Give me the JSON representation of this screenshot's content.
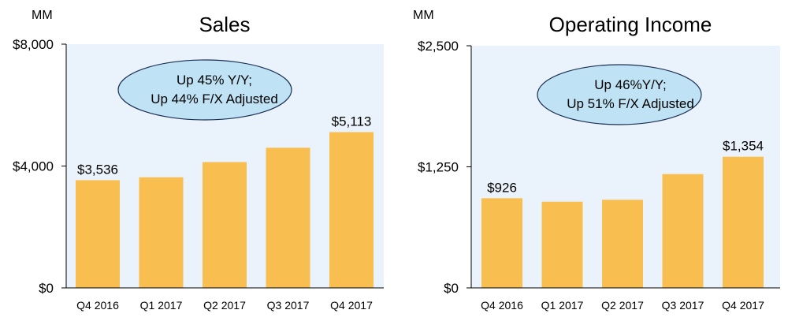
{
  "colors": {
    "plot_bg": "#eaf3fb",
    "bar": "#f8bf50",
    "callout_fill": "#bfe3f5",
    "callout_stroke": "#1c2f54",
    "axis": "#000000",
    "text": "#000000"
  },
  "chart_data": [
    {
      "type": "bar",
      "title": "Sales",
      "unit_label": "MM",
      "categories": [
        "Q4 2016",
        "Q1 2017",
        "Q2 2017",
        "Q3 2017",
        "Q4 2017"
      ],
      "values": [
        3536,
        3630,
        4130,
        4600,
        5113
      ],
      "data_labels": [
        "$3,536",
        "",
        "",
        "",
        "$5,113"
      ],
      "ylim": [
        0,
        8000
      ],
      "yticks": [
        0,
        4000,
        8000
      ],
      "ytick_labels": [
        "$0",
        "$4,000",
        "$8,000"
      ],
      "grid": false,
      "callout": [
        "Up 45% Y/Y;",
        "Up 44% F/X Adjusted"
      ]
    },
    {
      "type": "bar",
      "title": "Operating Income",
      "unit_label": "MM",
      "categories": [
        "Q4 2016",
        "Q1 2017",
        "Q2 2017",
        "Q3 2017",
        "Q4 2017"
      ],
      "values": [
        926,
        890,
        910,
        1175,
        1354
      ],
      "data_labels": [
        "$926",
        "",
        "",
        "",
        "$1,354"
      ],
      "ylim": [
        0,
        2500
      ],
      "yticks": [
        0,
        1250,
        2500
      ],
      "ytick_labels": [
        "$0",
        "$1,250",
        "$2,500"
      ],
      "grid": false,
      "callout": [
        "Up 46%Y/Y;",
        "Up 51% F/X Adjusted"
      ]
    }
  ]
}
